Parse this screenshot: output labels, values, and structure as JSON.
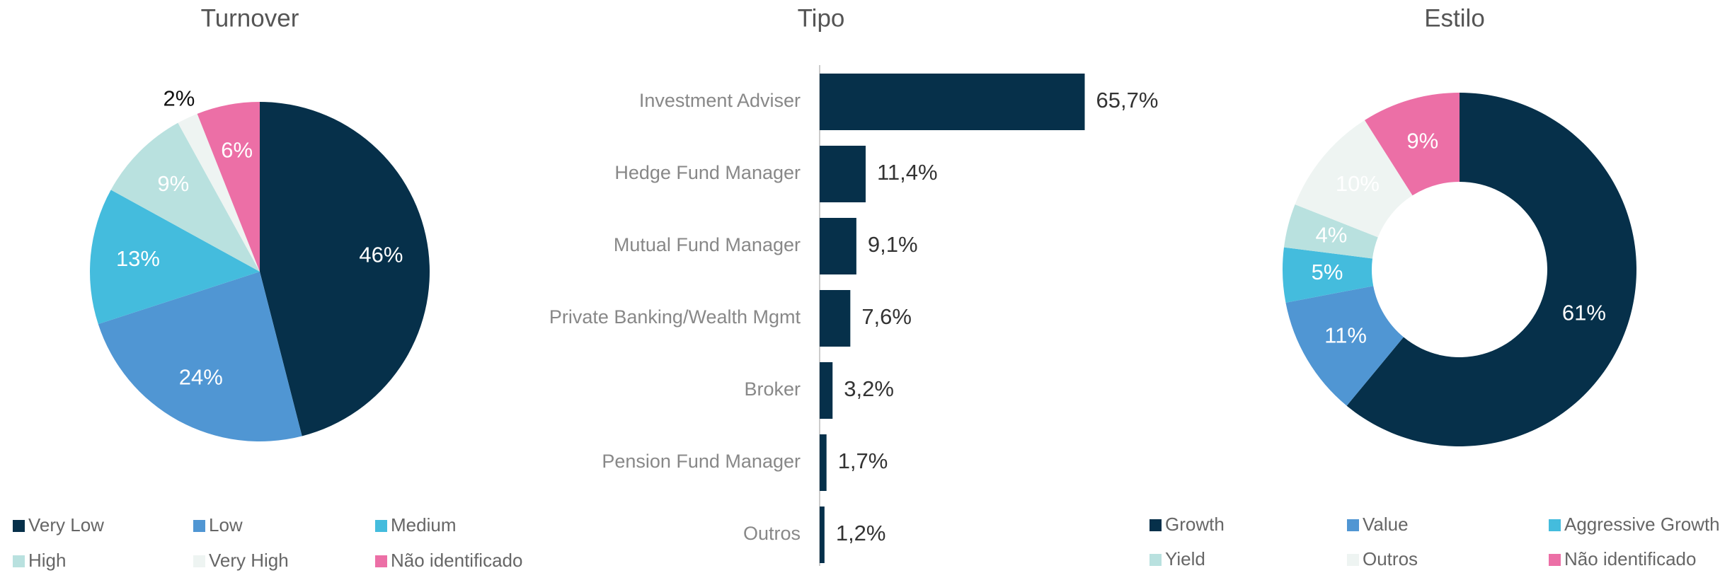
{
  "chart_data": [
    {
      "type": "pie",
      "title": "Turnover",
      "categories": [
        "Very Low",
        "Low",
        "Medium",
        "High",
        "Very High",
        "Não identificado"
      ],
      "values": [
        46,
        24,
        13,
        9,
        2,
        6
      ],
      "value_labels": [
        "46%",
        "24%",
        "13%",
        "9%",
        "2%",
        "6%"
      ],
      "colors": [
        "#06304a",
        "#5096d3",
        "#44bcdd",
        "#b9e1df",
        "#eef4f2",
        "#ec6fa6"
      ]
    },
    {
      "type": "barh",
      "title": "Tipo",
      "categories": [
        "Investment Adviser",
        "Hedge Fund Manager",
        "Mutual Fund Manager",
        "Private Banking/Wealth Mgmt",
        "Broker",
        "Pension Fund Manager",
        "Outros"
      ],
      "values": [
        65.7,
        11.4,
        9.1,
        7.6,
        3.2,
        1.7,
        1.2
      ],
      "value_labels": [
        "65,7%",
        "11,4%",
        "9,1%",
        "7,6%",
        "3,2%",
        "1,7%",
        "1,2%"
      ],
      "color": "#06304a"
    },
    {
      "type": "donut",
      "title": "Estilo",
      "categories": [
        "Growth",
        "Value",
        "Aggressive Growth",
        "Yield",
        "Outros",
        "Não identificado"
      ],
      "values": [
        61,
        11,
        5,
        4,
        10,
        9
      ],
      "value_labels": [
        "61%",
        "11%",
        "5%",
        "4%",
        "10%",
        "9%"
      ],
      "colors": [
        "#06304a",
        "#5096d3",
        "#44bcdd",
        "#b9e1df",
        "#eef4f2",
        "#ec6fa6"
      ]
    }
  ]
}
